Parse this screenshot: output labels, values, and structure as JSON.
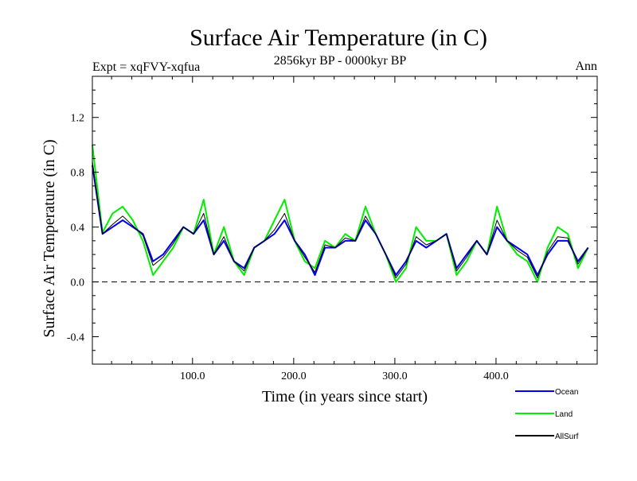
{
  "chart_data": {
    "type": "line",
    "title": "Surface Air Temperature (in C)",
    "subtitle_left": "Expt = xqFVY-xqfua",
    "subtitle_center": "2856kyr BP - 0000kyr BP",
    "subtitle_right": "Ann",
    "xlabel": "Time (in years since start)",
    "ylabel": "Surface Air Temperature (in C)",
    "xlim": [
      1,
      500
    ],
    "ylim": [
      -0.6,
      1.5
    ],
    "x_ticks": [
      100,
      200,
      300,
      400
    ],
    "x_tick_labels": [
      "100.0",
      "200.0",
      "300.0",
      "400.0"
    ],
    "y_ticks": [
      -0.4,
      0.0,
      0.4,
      0.8,
      1.2
    ],
    "y_tick_labels": [
      "-0.4",
      "0.0",
      "0.4",
      "0.8",
      "1.2"
    ],
    "reference_line": 0.0,
    "legend_position": "bottom-right",
    "series": [
      {
        "name": "Land",
        "color": "#00ee00",
        "x_step": 10,
        "values": [
          1.0,
          0.36,
          0.5,
          0.55,
          0.45,
          0.3,
          0.05,
          0.15,
          0.25,
          0.4,
          0.35,
          0.6,
          0.2,
          0.4,
          0.15,
          0.05,
          0.25,
          0.3,
          0.45,
          0.6,
          0.3,
          0.15,
          0.1,
          0.3,
          0.25,
          0.35,
          0.3,
          0.55,
          0.35,
          0.2,
          0.0,
          0.1,
          0.4,
          0.3,
          0.3,
          0.35,
          0.05,
          0.15,
          0.3,
          0.2,
          0.55,
          0.3,
          0.2,
          0.15,
          0.0,
          0.25,
          0.4,
          0.35,
          0.1,
          0.25
        ]
      },
      {
        "name": "Ocean",
        "color": "#0000ee",
        "x_step": 10,
        "values": [
          0.85,
          0.35,
          0.4,
          0.45,
          0.4,
          0.35,
          0.15,
          0.2,
          0.3,
          0.4,
          0.35,
          0.45,
          0.2,
          0.3,
          0.15,
          0.1,
          0.25,
          0.3,
          0.35,
          0.45,
          0.3,
          0.2,
          0.05,
          0.25,
          0.25,
          0.3,
          0.3,
          0.45,
          0.35,
          0.2,
          0.05,
          0.15,
          0.3,
          0.25,
          0.3,
          0.35,
          0.1,
          0.2,
          0.3,
          0.2,
          0.4,
          0.3,
          0.25,
          0.2,
          0.05,
          0.2,
          0.3,
          0.3,
          0.15,
          0.25
        ]
      },
      {
        "name": "AllSurf",
        "color": "#000000",
        "x_step": 10,
        "values": [
          0.88,
          0.35,
          0.42,
          0.48,
          0.41,
          0.34,
          0.12,
          0.18,
          0.28,
          0.4,
          0.35,
          0.5,
          0.2,
          0.33,
          0.15,
          0.08,
          0.25,
          0.3,
          0.38,
          0.5,
          0.3,
          0.18,
          0.07,
          0.27,
          0.25,
          0.32,
          0.3,
          0.48,
          0.35,
          0.2,
          0.03,
          0.13,
          0.33,
          0.27,
          0.3,
          0.35,
          0.08,
          0.18,
          0.3,
          0.2,
          0.45,
          0.3,
          0.23,
          0.18,
          0.03,
          0.22,
          0.33,
          0.32,
          0.13,
          0.25
        ]
      }
    ],
    "legend": [
      {
        "name": "Ocean",
        "color": "#0000ee"
      },
      {
        "name": "Land",
        "color": "#00ee00"
      },
      {
        "name": "AllSurf",
        "color": "#000000"
      }
    ]
  }
}
